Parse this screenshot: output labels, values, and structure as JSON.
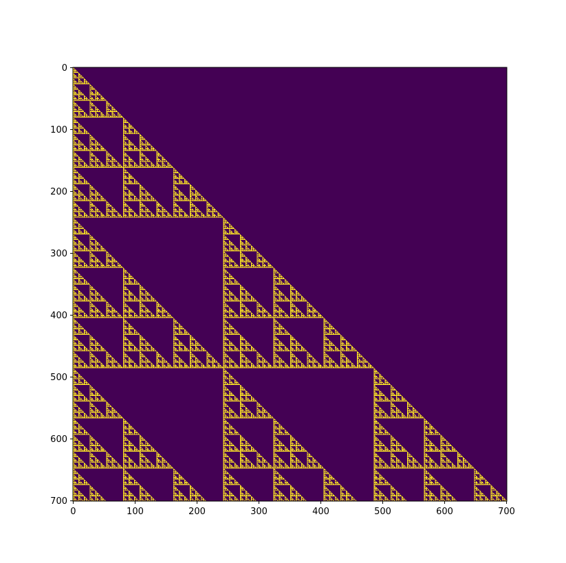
{
  "chart_data": {
    "type": "heatmap",
    "title": "",
    "xlabel": "",
    "ylabel": "",
    "size": 701,
    "xlim": [
      0,
      700
    ],
    "ylim": [
      700,
      0
    ],
    "description_rule": "cell(row, col) = 1 when col <= row and Pascal binomial C(row, col) mod 3 != 0, else 0",
    "modulus": 3,
    "colormap": {
      "low": "#440154",
      "high": "#fde725"
    },
    "x_ticks": [
      "0",
      "100",
      "200",
      "300",
      "400",
      "500",
      "600",
      "700"
    ],
    "y_ticks": [
      "0",
      "100",
      "200",
      "300",
      "400",
      "500",
      "600",
      "700"
    ],
    "x_tick_values": [
      0,
      100,
      200,
      300,
      400,
      500,
      600,
      700
    ],
    "y_tick_values": [
      0,
      100,
      200,
      300,
      400,
      500,
      600,
      700
    ],
    "grid": false,
    "legend": "none"
  }
}
